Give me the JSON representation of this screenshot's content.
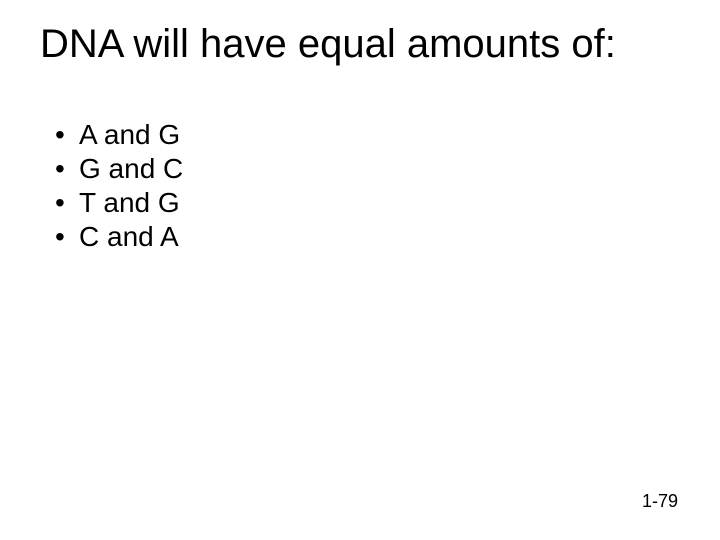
{
  "slide": {
    "background_color": "#ffffff",
    "text_color": "#000000",
    "font_family": "Arial",
    "title": {
      "text": "DNA will have equal amounts of:",
      "fontsize": 40,
      "weight": 400
    },
    "bullets": {
      "fontsize": 28,
      "marker": "•",
      "items": [
        "A and G",
        "G and C",
        "T and G",
        "C and A"
      ]
    },
    "footer": {
      "text": "1-79",
      "fontsize": 18
    }
  }
}
